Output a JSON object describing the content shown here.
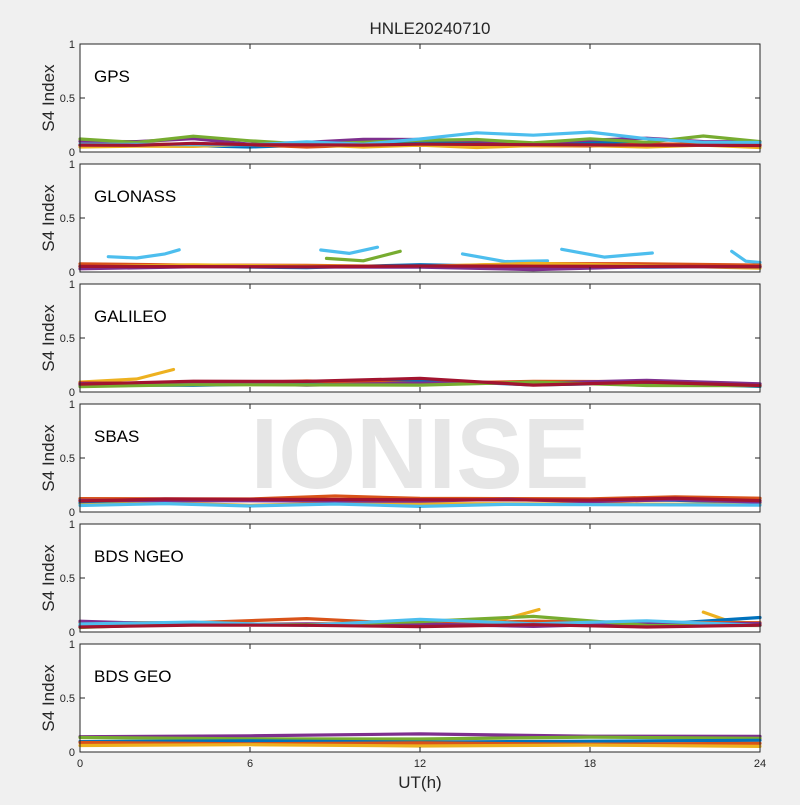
{
  "title": "HNLE20240710",
  "watermark": "IONISE",
  "colors": {
    "background": "#f0f0f0",
    "axes_bg": "#ffffff",
    "axis": "#262626",
    "watermark": "#e6e6e6",
    "series": [
      "#0072BD",
      "#D95319",
      "#EDB120",
      "#7E2F8E",
      "#77AC30",
      "#4DBEEE",
      "#A2142F"
    ]
  },
  "chart_data": [
    {
      "type": "line",
      "panel_label": "GPS",
      "ylabel": "S4 Index",
      "xlim": [
        0,
        24
      ],
      "ylim": [
        0,
        1
      ],
      "xticks": [
        0,
        6,
        12,
        18,
        24
      ],
      "yticks": [
        0,
        0.5,
        1
      ],
      "ytick_labels": [
        "0",
        "0.5",
        "1"
      ],
      "series": [
        {
          "color": "#0072BD",
          "x": [
            0,
            2,
            4,
            6,
            8,
            10,
            12,
            14,
            16,
            18,
            20,
            22,
            24
          ],
          "y": [
            0.07,
            0.06,
            0.05,
            0.05,
            0.06,
            0.08,
            0.1,
            0.08,
            0.07,
            0.09,
            0.08,
            0.07,
            0.08
          ]
        },
        {
          "color": "#D95319",
          "x": [
            0,
            2,
            4,
            6,
            8,
            10,
            12,
            14,
            16,
            18,
            20,
            22,
            24
          ],
          "y": [
            0.06,
            0.08,
            0.07,
            0.06,
            0.05,
            0.06,
            0.07,
            0.06,
            0.05,
            0.06,
            0.07,
            0.08,
            0.07
          ]
        },
        {
          "color": "#EDB120",
          "x": [
            0,
            2,
            4,
            6,
            8,
            10,
            12,
            14,
            16,
            18,
            20,
            22,
            24
          ],
          "y": [
            0.05,
            0.05,
            0.06,
            0.07,
            0.06,
            0.05,
            0.06,
            0.05,
            0.06,
            0.05,
            0.05,
            0.06,
            0.05
          ]
        },
        {
          "color": "#7E2F8E",
          "x": [
            0,
            2,
            4,
            6,
            8,
            10,
            12,
            14,
            16,
            18,
            20,
            22,
            24
          ],
          "y": [
            0.09,
            0.1,
            0.12,
            0.08,
            0.09,
            0.11,
            0.12,
            0.1,
            0.09,
            0.11,
            0.12,
            0.1,
            0.09
          ]
        },
        {
          "color": "#77AC30",
          "x": [
            0,
            2,
            4,
            6,
            8,
            10,
            12,
            14,
            16,
            18,
            20,
            22,
            24
          ],
          "y": [
            0.12,
            0.08,
            0.15,
            0.1,
            0.08,
            0.09,
            0.1,
            0.12,
            0.08,
            0.13,
            0.09,
            0.14,
            0.1
          ]
        },
        {
          "color": "#4DBEEE",
          "x": [
            0,
            2,
            4,
            6,
            8,
            10,
            12,
            14,
            16,
            18,
            20,
            22,
            24
          ],
          "y": [
            0.08,
            0.07,
            0.06,
            0.07,
            0.09,
            0.08,
            0.12,
            0.17,
            0.16,
            0.18,
            0.13,
            0.09,
            0.08
          ]
        },
        {
          "color": "#A2142F",
          "x": [
            0,
            2,
            4,
            6,
            8,
            10,
            12,
            14,
            16,
            18,
            20,
            22,
            24
          ],
          "y": [
            0.06,
            0.07,
            0.08,
            0.06,
            0.07,
            0.06,
            0.08,
            0.07,
            0.06,
            0.07,
            0.06,
            0.07,
            0.06
          ]
        }
      ]
    },
    {
      "type": "line",
      "panel_label": "GLONASS",
      "ylabel": "S4 Index",
      "xlim": [
        0,
        24
      ],
      "ylim": [
        0,
        1
      ],
      "xticks": [
        0,
        6,
        12,
        18,
        24
      ],
      "yticks": [
        0,
        0.5,
        1
      ],
      "ytick_labels": [
        "0",
        "0.5",
        "1"
      ],
      "series": [
        {
          "color": "#4DBEEE",
          "x": [
            1,
            2,
            3,
            3.5
          ],
          "y": [
            0.15,
            0.13,
            0.16,
            0.21
          ]
        },
        {
          "color": "#4DBEEE",
          "x": [
            8.5,
            9.5,
            10.5
          ],
          "y": [
            0.2,
            0.18,
            0.23
          ]
        },
        {
          "color": "#77AC30",
          "x": [
            8.7,
            10,
            11.3
          ],
          "y": [
            0.13,
            0.1,
            0.2
          ]
        },
        {
          "color": "#4DBEEE",
          "x": [
            13.5,
            15,
            16.5
          ],
          "y": [
            0.16,
            0.1,
            0.1
          ]
        },
        {
          "color": "#4DBEEE",
          "x": [
            17,
            18.5,
            20.2
          ],
          "y": [
            0.21,
            0.13,
            0.18
          ]
        },
        {
          "color": "#4DBEEE",
          "x": [
            23,
            23.5,
            24
          ],
          "y": [
            0.2,
            0.1,
            0.08
          ]
        },
        {
          "color": "#0072BD",
          "x": [
            0,
            4,
            8,
            12,
            16,
            20,
            24
          ],
          "y": [
            0.05,
            0.06,
            0.04,
            0.06,
            0.05,
            0.04,
            0.06
          ]
        },
        {
          "color": "#D95319",
          "x": [
            0,
            4,
            8,
            12,
            16,
            20,
            24
          ],
          "y": [
            0.08,
            0.06,
            0.07,
            0.05,
            0.07,
            0.08,
            0.06
          ]
        },
        {
          "color": "#EDB120",
          "x": [
            0,
            4,
            8,
            12,
            16,
            20,
            24
          ],
          "y": [
            0.04,
            0.07,
            0.05,
            0.06,
            0.08,
            0.05,
            0.04
          ]
        },
        {
          "color": "#7E2F8E",
          "x": [
            0,
            4,
            8,
            12,
            16,
            20,
            24
          ],
          "y": [
            0.03,
            0.04,
            0.05,
            0.04,
            0.03,
            0.05,
            0.04
          ]
        },
        {
          "color": "#A2142F",
          "x": [
            0,
            4,
            8,
            12,
            16,
            20,
            24
          ],
          "y": [
            0.06,
            0.05,
            0.04,
            0.06,
            0.05,
            0.06,
            0.05
          ]
        }
      ]
    },
    {
      "type": "line",
      "panel_label": "GALILEO",
      "ylabel": "S4 Index",
      "xlim": [
        0,
        24
      ],
      "ylim": [
        0,
        1
      ],
      "xticks": [
        0,
        6,
        12,
        18,
        24
      ],
      "yticks": [
        0,
        0.5,
        1
      ],
      "ytick_labels": [
        "0",
        "0.5",
        "1"
      ],
      "series": [
        {
          "color": "#EDB120",
          "x": [
            0,
            2,
            3.3
          ],
          "y": [
            0.1,
            0.12,
            0.2
          ]
        },
        {
          "color": "#0072BD",
          "x": [
            0,
            4,
            8,
            12,
            16,
            20,
            24
          ],
          "y": [
            0.06,
            0.07,
            0.08,
            0.1,
            0.07,
            0.08,
            0.06
          ]
        },
        {
          "color": "#D95319",
          "x": [
            0,
            4,
            8,
            12,
            16,
            20,
            24
          ],
          "y": [
            0.09,
            0.07,
            0.11,
            0.08,
            0.09,
            0.1,
            0.07
          ]
        },
        {
          "color": "#7E2F8E",
          "x": [
            0,
            4,
            8,
            12,
            16,
            20,
            24
          ],
          "y": [
            0.07,
            0.09,
            0.06,
            0.09,
            0.08,
            0.1,
            0.08
          ]
        },
        {
          "color": "#77AC30",
          "x": [
            0,
            4,
            8,
            12,
            16,
            20,
            24
          ],
          "y": [
            0.05,
            0.06,
            0.07,
            0.06,
            0.1,
            0.06,
            0.05
          ]
        },
        {
          "color": "#A2142F",
          "x": [
            0,
            4,
            8,
            12,
            16,
            20,
            24
          ],
          "y": [
            0.08,
            0.1,
            0.09,
            0.13,
            0.06,
            0.1,
            0.06
          ]
        }
      ]
    },
    {
      "type": "line",
      "panel_label": "SBAS",
      "ylabel": "S4 Index",
      "xlim": [
        0,
        24
      ],
      "ylim": [
        0,
        1
      ],
      "xticks": [
        0,
        6,
        12,
        18,
        24
      ],
      "yticks": [
        0,
        0.5,
        1
      ],
      "ytick_labels": [
        "0",
        "0.5",
        "1"
      ],
      "series": [
        {
          "color": "#0072BD",
          "x": [
            0,
            3,
            6,
            9,
            12,
            15,
            18,
            21,
            24
          ],
          "y": [
            0.09,
            0.1,
            0.11,
            0.1,
            0.12,
            0.13,
            0.11,
            0.1,
            0.09
          ]
        },
        {
          "color": "#D95319",
          "x": [
            0,
            3,
            6,
            9,
            12,
            15,
            18,
            21,
            24
          ],
          "y": [
            0.12,
            0.13,
            0.12,
            0.14,
            0.13,
            0.12,
            0.13,
            0.14,
            0.12
          ]
        },
        {
          "color": "#EDB120",
          "x": [
            0,
            3,
            6,
            9,
            12,
            15,
            18,
            21,
            24
          ],
          "y": [
            0.07,
            0.08,
            0.07,
            0.08,
            0.07,
            0.08,
            0.07,
            0.08,
            0.07
          ]
        },
        {
          "color": "#7E2F8E",
          "x": [
            0,
            3,
            6,
            9,
            12,
            15,
            18,
            21,
            24
          ],
          "y": [
            0.1,
            0.11,
            0.1,
            0.11,
            0.1,
            0.11,
            0.1,
            0.11,
            0.1
          ]
        },
        {
          "color": "#4DBEEE",
          "x": [
            0,
            3,
            6,
            9,
            12,
            15,
            18,
            21,
            24
          ],
          "y": [
            0.06,
            0.07,
            0.06,
            0.07,
            0.06,
            0.07,
            0.06,
            0.07,
            0.06
          ]
        },
        {
          "color": "#A2142F",
          "x": [
            0,
            3,
            6,
            9,
            12,
            15,
            18,
            21,
            24
          ],
          "y": [
            0.11,
            0.12,
            0.11,
            0.12,
            0.11,
            0.12,
            0.11,
            0.12,
            0.11
          ]
        }
      ]
    },
    {
      "type": "line",
      "panel_label": "BDS NGEO",
      "ylabel": "S4 Index",
      "xlim": [
        0,
        24
      ],
      "ylim": [
        0,
        1
      ],
      "xticks": [
        0,
        6,
        12,
        18,
        24
      ],
      "yticks": [
        0,
        0.5,
        1
      ],
      "ytick_labels": [
        "0",
        "0.5",
        "1"
      ],
      "series": [
        {
          "color": "#EDB120",
          "x": [
            13.5,
            15,
            16.2
          ],
          "y": [
            0.08,
            0.12,
            0.2
          ]
        },
        {
          "color": "#EDB120",
          "x": [
            22,
            23,
            24
          ],
          "y": [
            0.18,
            0.1,
            0.08
          ]
        },
        {
          "color": "#0072BD",
          "x": [
            0,
            4,
            8,
            12,
            16,
            20,
            24
          ],
          "y": [
            0.06,
            0.07,
            0.08,
            0.06,
            0.09,
            0.07,
            0.13
          ]
        },
        {
          "color": "#D95319",
          "x": [
            0,
            4,
            8,
            12,
            16,
            20,
            24
          ],
          "y": [
            0.08,
            0.09,
            0.12,
            0.08,
            0.1,
            0.08,
            0.09
          ]
        },
        {
          "color": "#7E2F8E",
          "x": [
            0,
            4,
            8,
            12,
            16,
            20,
            24
          ],
          "y": [
            0.1,
            0.06,
            0.08,
            0.07,
            0.06,
            0.08,
            0.07
          ]
        },
        {
          "color": "#77AC30",
          "x": [
            0,
            4,
            8,
            12,
            16,
            20,
            24
          ],
          "y": [
            0.05,
            0.08,
            0.06,
            0.1,
            0.14,
            0.07,
            0.06
          ]
        },
        {
          "color": "#4DBEEE",
          "x": [
            0,
            4,
            8,
            12,
            16,
            20,
            24
          ],
          "y": [
            0.07,
            0.1,
            0.06,
            0.11,
            0.08,
            0.1,
            0.07
          ]
        },
        {
          "color": "#A2142F",
          "x": [
            0,
            4,
            8,
            12,
            16,
            20,
            24
          ],
          "y": [
            0.05,
            0.06,
            0.07,
            0.05,
            0.06,
            0.05,
            0.06
          ]
        }
      ]
    },
    {
      "type": "line",
      "panel_label": "BDS GEO",
      "ylabel": "S4 Index",
      "xlabel": "UT(h)",
      "xlim": [
        0,
        24
      ],
      "ylim": [
        0,
        1
      ],
      "xticks": [
        0,
        6,
        12,
        18,
        24
      ],
      "xtick_labels": [
        "0",
        "6",
        "12",
        "18",
        "24"
      ],
      "yticks": [
        0,
        0.5,
        1
      ],
      "ytick_labels": [
        "0",
        "0.5",
        "1"
      ],
      "series": [
        {
          "color": "#7E2F8E",
          "x": [
            0,
            6,
            12,
            18,
            24
          ],
          "y": [
            0.15,
            0.15,
            0.16,
            0.15,
            0.14
          ]
        },
        {
          "color": "#77AC30",
          "x": [
            0,
            6,
            12,
            18,
            24
          ],
          "y": [
            0.13,
            0.13,
            0.12,
            0.13,
            0.13
          ]
        },
        {
          "color": "#0072BD",
          "x": [
            0,
            6,
            12,
            18,
            24
          ],
          "y": [
            0.1,
            0.1,
            0.1,
            0.1,
            0.1
          ]
        },
        {
          "color": "#D95319",
          "x": [
            0,
            6,
            12,
            18,
            24
          ],
          "y": [
            0.08,
            0.08,
            0.08,
            0.08,
            0.08
          ]
        },
        {
          "color": "#EDB120",
          "x": [
            0,
            6,
            12,
            18,
            24
          ],
          "y": [
            0.06,
            0.06,
            0.06,
            0.06,
            0.06
          ]
        }
      ]
    }
  ]
}
